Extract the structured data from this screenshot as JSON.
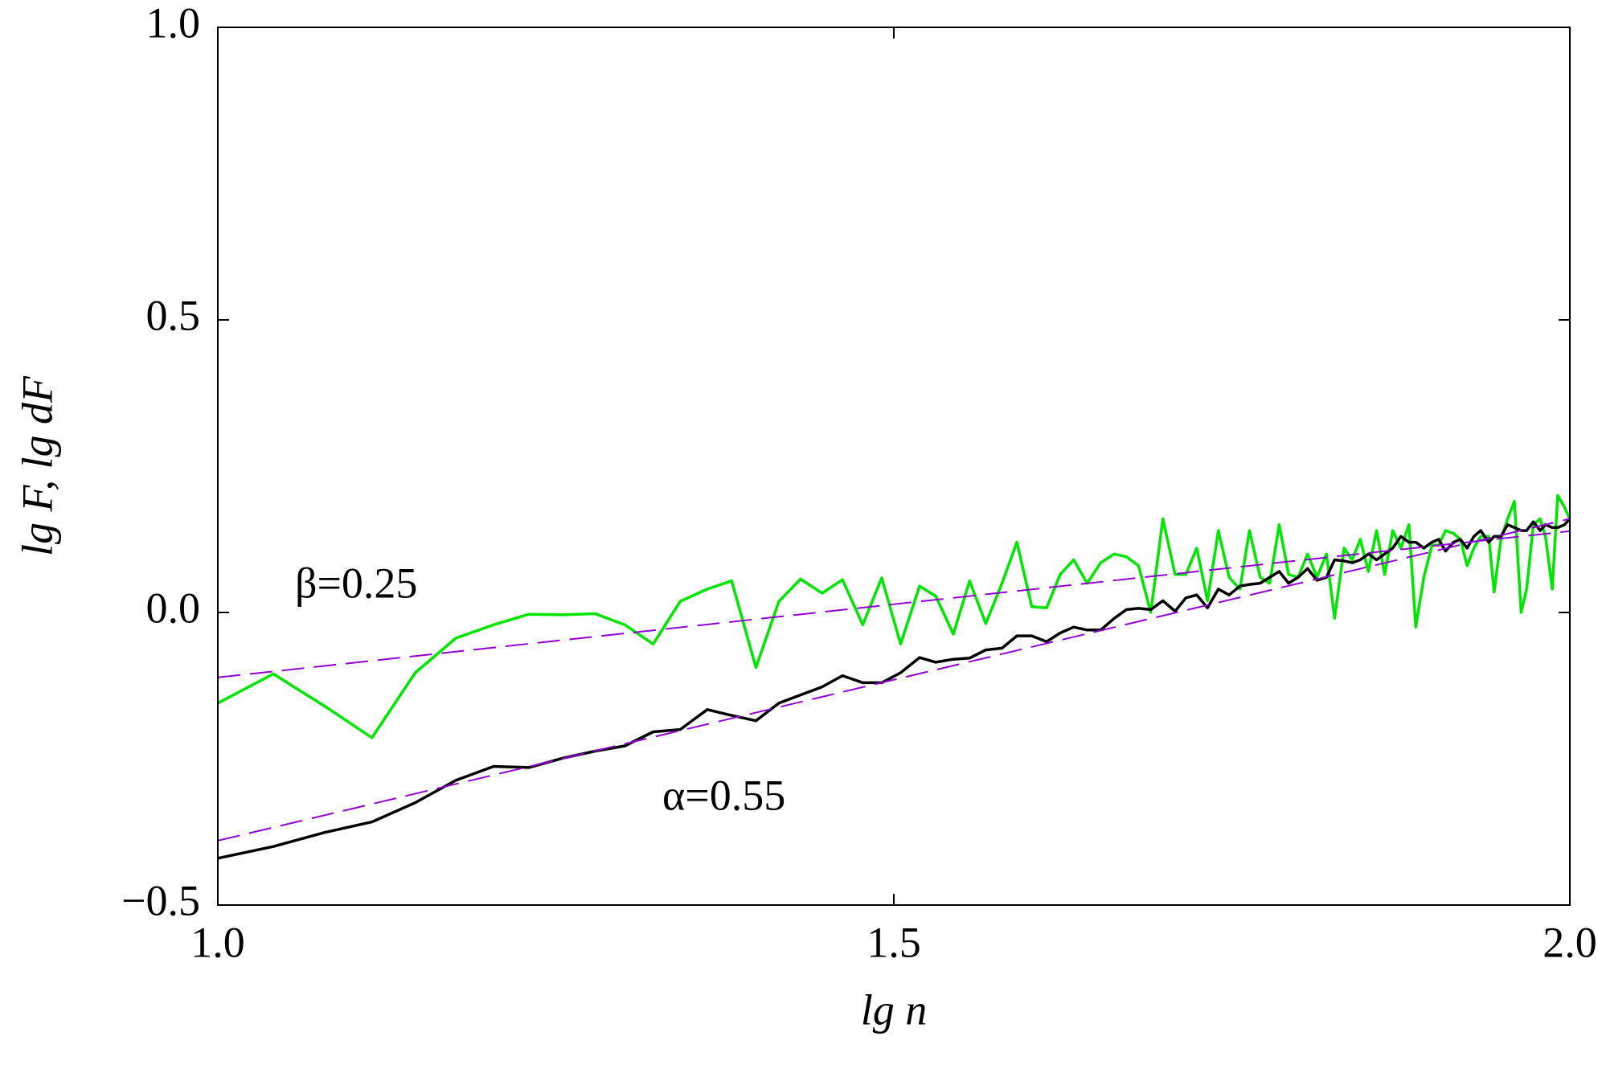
{
  "chart_data": {
    "type": "line",
    "xlabel": "lg n",
    "ylabel": "lg F, lg dF",
    "annotations": [
      "β=0.25",
      "α=0.55"
    ],
    "xlim": [
      1,
      2
    ],
    "ylim": [
      -0.5,
      1
    ],
    "xticks": [
      {
        "value": 1,
        "label": "1.0"
      },
      {
        "value": 1.5,
        "label": "1.5"
      },
      {
        "value": 2,
        "label": "2.0"
      }
    ],
    "yticks": [
      {
        "value": -0.5,
        "label": "−0.5"
      },
      {
        "value": 0,
        "label": "0.0"
      },
      {
        "value": 0.5,
        "label": "0.5"
      },
      {
        "value": 1,
        "label": "1.0"
      }
    ],
    "x": [
      1,
      1.041,
      1.079,
      1.114,
      1.146,
      1.176,
      1.204,
      1.23,
      1.255,
      1.279,
      1.301,
      1.322,
      1.342,
      1.362,
      1.38,
      1.398,
      1.415,
      1.431,
      1.447,
      1.462,
      1.477,
      1.491,
      1.505,
      1.519,
      1.531,
      1.544,
      1.556,
      1.568,
      1.58,
      1.591,
      1.602,
      1.613,
      1.623,
      1.633,
      1.643,
      1.653,
      1.663,
      1.672,
      1.681,
      1.69,
      1.699,
      1.708,
      1.716,
      1.724,
      1.732,
      1.74,
      1.748,
      1.756,
      1.763,
      1.771,
      1.778,
      1.785,
      1.792,
      1.799,
      1.806,
      1.813,
      1.82,
      1.826,
      1.833,
      1.839,
      1.845,
      1.851,
      1.857,
      1.863,
      1.869,
      1.875,
      1.881,
      1.886,
      1.892,
      1.898,
      1.903,
      1.908,
      1.914,
      1.919,
      1.924,
      1.929,
      1.934,
      1.94,
      1.944,
      1.949,
      1.954,
      1.959,
      1.964,
      1.968,
      1.973,
      1.978,
      1.982,
      1.987,
      1.991,
      1.996,
      2
    ],
    "series": [
      {
        "color": "#00e600",
        "dash": false,
        "values": [
          -0.155,
          -0.105,
          -0.16,
          -0.214,
          -0.103,
          -0.044,
          -0.021,
          -0.003,
          -0.004,
          -0.002,
          -0.021,
          -0.054,
          0.019,
          0.04,
          0.054,
          -0.094,
          0.019,
          0.057,
          0.033,
          0.056,
          -0.021,
          0.059,
          -0.054,
          0.045,
          0.028,
          -0.037,
          0.054,
          -0.019,
          0.05,
          0.12,
          0.01,
          0.008,
          0.065,
          0.09,
          0.05,
          0.085,
          0.1,
          0.095,
          0.08,
          0,
          0.16,
          0.065,
          0.065,
          0.11,
          0.02,
          0.14,
          0.06,
          0.04,
          0.14,
          0.06,
          0.05,
          0.15,
          0.065,
          0.06,
          0.1,
          0.06,
          0.1,
          -0.01,
          0.11,
          0.09,
          0.125,
          0.07,
          0.14,
          0.065,
          0.14,
          0.11,
          0.15,
          -0.025,
          0.06,
          0.115,
          0.115,
          0.14,
          0.135,
          0.125,
          0.08,
          0.11,
          0.13,
          0.13,
          0.035,
          0.125,
          0.16,
          0.19,
          0,
          0.04,
          0.15,
          0.16,
          0.13,
          0.04,
          0.2,
          0.18,
          0.16
        ]
      },
      {
        "color": "#000000",
        "dash": false,
        "values": [
          -0.42,
          -0.4,
          -0.376,
          -0.358,
          -0.325,
          -0.287,
          -0.263,
          -0.265,
          -0.249,
          -0.237,
          -0.228,
          -0.204,
          -0.2,
          -0.166,
          -0.176,
          -0.185,
          -0.155,
          -0.141,
          -0.127,
          -0.108,
          -0.12,
          -0.12,
          -0.103,
          -0.077,
          -0.085,
          -0.08,
          -0.078,
          -0.064,
          -0.061,
          -0.04,
          -0.04,
          -0.05,
          -0.035,
          -0.025,
          -0.03,
          -0.03,
          -0.01,
          0.005,
          0.007,
          0.005,
          0.02,
          0.002,
          0.025,
          0.03,
          0.008,
          0.04,
          0.03,
          0.045,
          0.048,
          0.05,
          0.06,
          0.07,
          0.05,
          0.06,
          0.075,
          0.055,
          0.06,
          0.09,
          0.088,
          0.085,
          0.09,
          0.1,
          0.09,
          0.1,
          0.11,
          0.13,
          0.12,
          0.12,
          0.11,
          0.12,
          0.125,
          0.105,
          0.12,
          0.125,
          0.11,
          0.13,
          0.14,
          0.12,
          0.13,
          0.13,
          0.15,
          0.145,
          0.14,
          0.14,
          0.155,
          0.14,
          0.15,
          0.145,
          0.145,
          0.15,
          0.16
        ]
      },
      {
        "color": "#9400d3",
        "dash": true,
        "x": [
          1,
          2
        ],
        "values": [
          -0.111,
          0.139
        ]
      },
      {
        "color": "#9400d3",
        "dash": true,
        "x": [
          1,
          2
        ],
        "values": [
          -0.39,
          0.16
        ]
      }
    ]
  }
}
